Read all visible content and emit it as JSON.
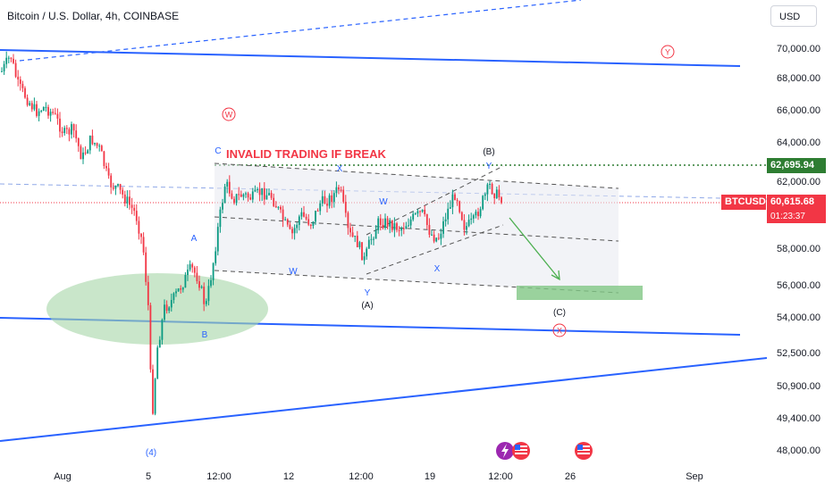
{
  "header": {
    "title": "Bitcoin / U.S. Dollar, 4h, COINBASE",
    "currency": "USD"
  },
  "price_axis": {
    "ticks": [
      "70,000.00",
      "68,000.00",
      "66,000.00",
      "64,000.00",
      "62,000.00",
      "58,000.00",
      "56,000.00",
      "54,000.00",
      "52,500.00",
      "50,900.00",
      "49,400.00",
      "48,000.00"
    ]
  },
  "time_axis": {
    "labels": [
      "Aug",
      "5",
      "12:00",
      "12",
      "12:00",
      "19",
      "12:00",
      "26",
      "Sep"
    ]
  },
  "markers": {
    "level_price": "62,695.94",
    "symbol": "BTCUSD",
    "last_price": "60,615.68",
    "countdown": "01:23:37"
  },
  "annotations": {
    "invalid_note": "INVALID TRADING IF BREAK",
    "circled_w": "W",
    "circled_y": "Y",
    "circled_x": "X",
    "wave_c_top": "C",
    "wave_a_left": "A",
    "wave_b_left": "B",
    "wave_4": "(4)",
    "w1": "W",
    "x1": "X",
    "y1": "Y",
    "wave_a_paren": "(A)",
    "w2": "W",
    "x2": "X",
    "y2": "Y",
    "wave_b_paren": "(B)",
    "wave_c_paren": "(C)"
  },
  "colors": {
    "up": "#089981",
    "down": "#f23645",
    "channel": "#2962ff",
    "level": "#2e7d32",
    "accent_red": "#f23645",
    "green_zone": "#81c784"
  },
  "icons": [
    "lightning-event-icon",
    "us-flag-event-icon",
    "us-flag-event-icon"
  ]
}
